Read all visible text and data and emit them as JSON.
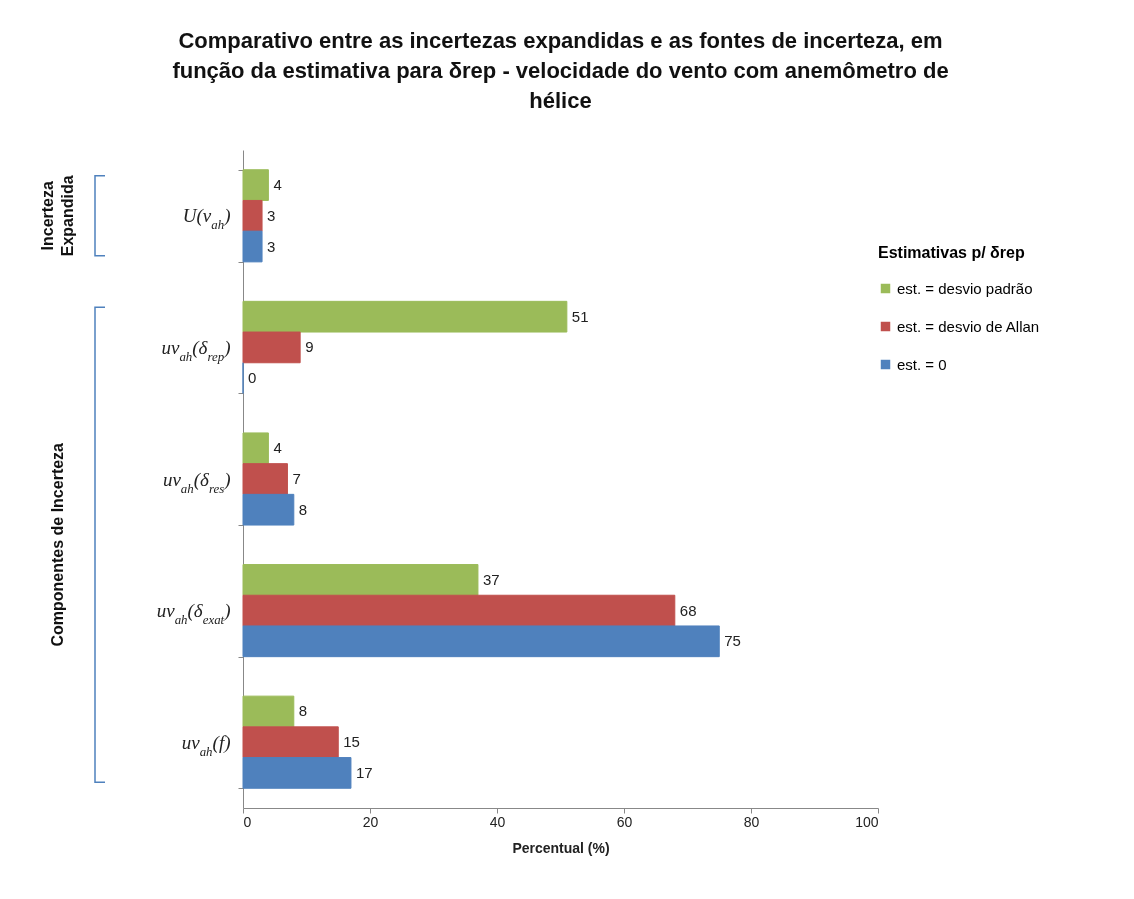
{
  "chart_data": {
    "type": "bar",
    "orientation": "horizontal",
    "title": "Comparativo entre as incertezas expandidas e as fontes de incerteza, em função da estimativa para δrep - velocidade do vento com anemômetro de hélice",
    "xlabel": "Percentual (%)",
    "legend_title": "Estimativas p/ δrep",
    "legend": "right",
    "data_labels": true,
    "xlim": [
      0,
      100
    ],
    "xticks": [
      0,
      20,
      40,
      60,
      80,
      100
    ],
    "categories": [
      "U(v$_{ah}$)",
      "uv$_{ah}$(δ$_{rep}$)",
      "uv$_{ah}$(δ$_{res}$)",
      "uv$_{ah}$(δ$_{exat}$)",
      "uv$_{ah}$(f)"
    ],
    "series": [
      {
        "name": "est. = desvio padrão",
        "color": "#9bbb59",
        "values": [
          4,
          51,
          4,
          37,
          8
        ]
      },
      {
        "name": "est. = desvio de Allan",
        "color": "#c0504d",
        "values": [
          3,
          9,
          7,
          68,
          15
        ]
      },
      {
        "name": "est. = 0",
        "color": "#4f81bd",
        "values": [
          3,
          0,
          8,
          75,
          17
        ]
      }
    ],
    "annotations": [
      "Incerteza Expandida",
      "Componentes de Incerteza"
    ]
  }
}
